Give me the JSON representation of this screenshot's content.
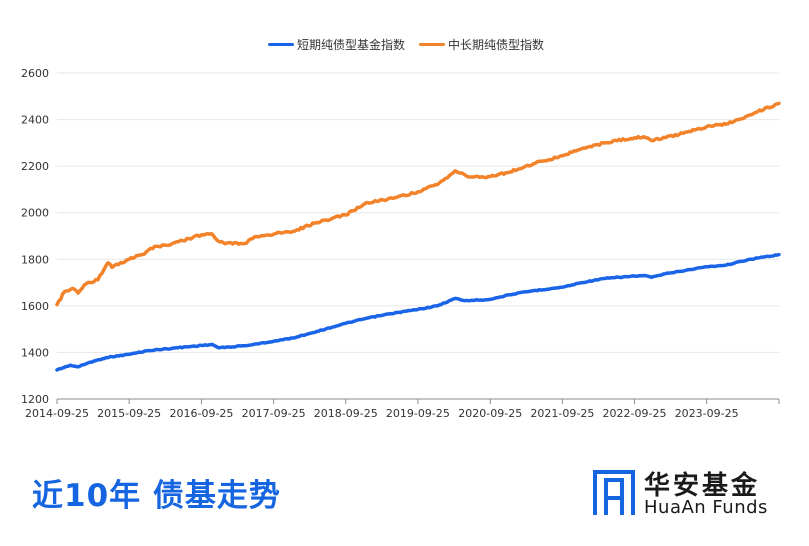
{
  "chart_data": {
    "type": "line",
    "x_start": "2014-09-25",
    "x_end": "2024-09-25",
    "x_ticks": [
      "2014-09-25",
      "2015-09-25",
      "2016-09-25",
      "2017-09-25",
      "2018-09-25",
      "2019-09-25",
      "2020-09-25",
      "2021-09-25",
      "2022-09-25",
      "2023-09-25"
    ],
    "ylim": [
      1200,
      2600
    ],
    "y_ticks": [
      1200,
      1400,
      1600,
      1800,
      2000,
      2200,
      2400,
      2600
    ],
    "grid": true,
    "legend_position": "top",
    "series": [
      {
        "name": "短期纯债型基金指数",
        "color": "#1a64e8",
        "points": [
          [
            "2014-09-25",
            1325
          ],
          [
            "2014-12-01",
            1345
          ],
          [
            "2015-01-10",
            1338
          ],
          [
            "2015-03-01",
            1355
          ],
          [
            "2015-06-01",
            1378
          ],
          [
            "2015-09-25",
            1392
          ],
          [
            "2016-01-01",
            1408
          ],
          [
            "2016-05-01",
            1418
          ],
          [
            "2016-09-25",
            1430
          ],
          [
            "2016-11-20",
            1434
          ],
          [
            "2016-12-20",
            1420
          ],
          [
            "2017-03-01",
            1424
          ],
          [
            "2017-06-01",
            1432
          ],
          [
            "2017-09-25",
            1448
          ],
          [
            "2018-01-01",
            1462
          ],
          [
            "2018-05-01",
            1490
          ],
          [
            "2018-09-25",
            1525
          ],
          [
            "2019-01-01",
            1545
          ],
          [
            "2019-05-01",
            1565
          ],
          [
            "2019-09-25",
            1585
          ],
          [
            "2020-01-01",
            1600
          ],
          [
            "2020-04-01",
            1632
          ],
          [
            "2020-05-20",
            1622
          ],
          [
            "2020-09-25",
            1628
          ],
          [
            "2021-01-01",
            1648
          ],
          [
            "2021-05-01",
            1665
          ],
          [
            "2021-09-25",
            1680
          ],
          [
            "2022-01-01",
            1700
          ],
          [
            "2022-05-01",
            1718
          ],
          [
            "2022-09-25",
            1728
          ],
          [
            "2022-11-20",
            1730
          ],
          [
            "2022-12-20",
            1722
          ],
          [
            "2023-03-01",
            1738
          ],
          [
            "2023-09-25",
            1768
          ],
          [
            "2024-01-01",
            1775
          ],
          [
            "2024-05-01",
            1800
          ],
          [
            "2024-09-25",
            1820
          ]
        ]
      },
      {
        "name": "中长期纯债型指数",
        "color": "#f2832a",
        "points": [
          [
            "2014-09-25",
            1605
          ],
          [
            "2014-11-01",
            1660
          ],
          [
            "2014-12-15",
            1675
          ],
          [
            "2015-01-10",
            1655
          ],
          [
            "2015-02-20",
            1695
          ],
          [
            "2015-04-20",
            1712
          ],
          [
            "2015-06-10",
            1785
          ],
          [
            "2015-07-01",
            1765
          ],
          [
            "2015-09-25",
            1800
          ],
          [
            "2015-12-01",
            1820
          ],
          [
            "2016-02-01",
            1855
          ],
          [
            "2016-04-01",
            1860
          ],
          [
            "2016-06-01",
            1875
          ],
          [
            "2016-09-25",
            1905
          ],
          [
            "2016-11-15",
            1910
          ],
          [
            "2016-12-25",
            1875
          ],
          [
            "2017-02-01",
            1870
          ],
          [
            "2017-05-01",
            1868
          ],
          [
            "2017-07-01",
            1898
          ],
          [
            "2017-09-25",
            1908
          ],
          [
            "2018-01-01",
            1920
          ],
          [
            "2018-05-01",
            1958
          ],
          [
            "2018-09-25",
            1990
          ],
          [
            "2019-01-01",
            2040
          ],
          [
            "2019-04-01",
            2055
          ],
          [
            "2019-06-01",
            2065
          ],
          [
            "2019-09-25",
            2090
          ],
          [
            "2020-01-01",
            2120
          ],
          [
            "2020-04-01",
            2180
          ],
          [
            "2020-06-01",
            2155
          ],
          [
            "2020-09-25",
            2155
          ],
          [
            "2021-01-01",
            2175
          ],
          [
            "2021-05-01",
            2210
          ],
          [
            "2021-09-25",
            2245
          ],
          [
            "2022-01-01",
            2275
          ],
          [
            "2022-05-01",
            2300
          ],
          [
            "2022-09-25",
            2322
          ],
          [
            "2022-11-20",
            2322
          ],
          [
            "2022-12-20",
            2310
          ],
          [
            "2023-03-01",
            2322
          ],
          [
            "2023-09-25",
            2370
          ],
          [
            "2024-01-01",
            2380
          ],
          [
            "2024-05-01",
            2420
          ],
          [
            "2024-09-25",
            2470
          ]
        ]
      }
    ]
  },
  "footer": {
    "title": "近10年 债基走势"
  },
  "brand": {
    "name_cn": "华安基金",
    "name_en": "HuaAn Funds",
    "color": "#1565e0"
  }
}
